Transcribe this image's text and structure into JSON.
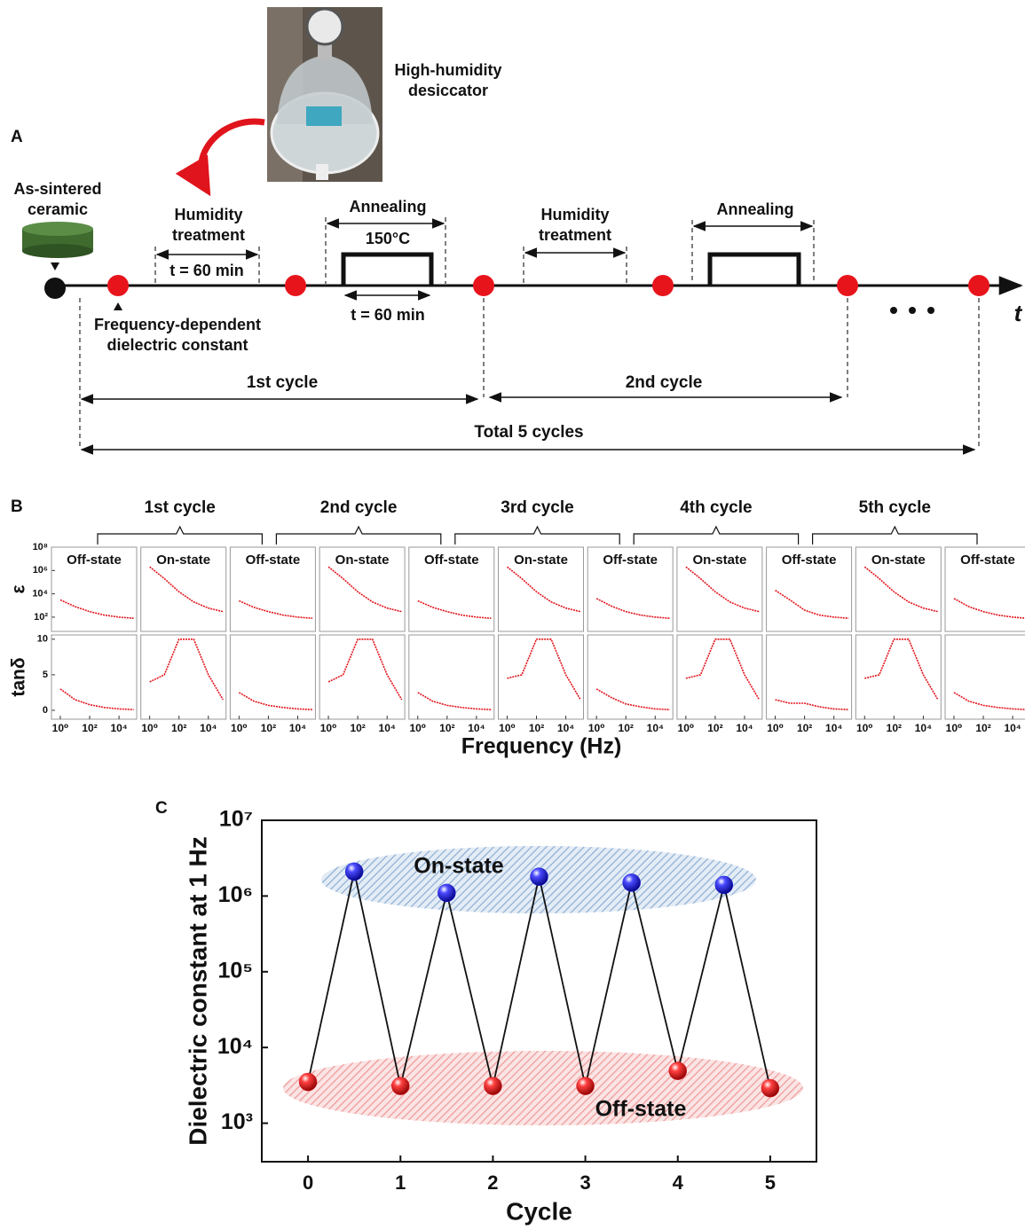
{
  "diagram": {
    "label": "A",
    "desiccator": [
      "High-humidity",
      "desiccator"
    ],
    "sample": [
      "As-sintered",
      "ceramic"
    ],
    "measurement": [
      "Frequency-dependent",
      "dielectric constant"
    ],
    "steps": [
      {
        "title": [
          "Humidity",
          "treatment"
        ],
        "time": "t = 60 min"
      },
      {
        "title": [
          "Annealing"
        ],
        "temperature": "150°C",
        "time": "t = 60 min"
      },
      {
        "title": [
          "Humidity",
          "treatment"
        ]
      },
      {
        "title": [
          "Annealing"
        ]
      }
    ],
    "axis": "t",
    "cycles": [
      "1st cycle",
      "2nd cycle"
    ],
    "total": "Total 5 cycles"
  },
  "chart_data": [
    {
      "type": "small-multiples",
      "panel_label": "B",
      "groups": [
        "1st cycle",
        "2nd cycle",
        "3rd cycle",
        "4th cycle",
        "5th cycle"
      ],
      "color": "#e3141c",
      "log_x": true,
      "x": [
        1,
        10,
        100,
        1000,
        10000,
        100000
      ],
      "xlim": [
        0.25,
        160000
      ],
      "xticks": [
        {
          "value": 1,
          "label": "10⁰"
        },
        {
          "value": 100,
          "label": "10²"
        },
        {
          "value": 10000,
          "label": "10⁴"
        }
      ],
      "xlabel": "Frequency (Hz)",
      "rows": {
        "epsilon": {
          "label": "ε",
          "log_y": true,
          "ylim": [
            6,
            100000000
          ],
          "yticks": [
            {
              "value": 100,
              "label": "10²"
            },
            {
              "value": 10000,
              "label": "10⁴"
            },
            {
              "value": 1000000,
              "label": "10⁶"
            },
            {
              "value": 100000000,
              "label": "10⁸"
            }
          ]
        },
        "tan_delta": {
          "label": "tanδ",
          "log_y": false,
          "ylim": [
            -1.25,
            10.6
          ],
          "yticks": [
            0,
            5,
            10
          ]
        }
      },
      "panels": [
        {
          "label": "Off-state",
          "epsilon": [
            3000,
            800,
            300,
            150,
            100,
            80
          ],
          "tan_delta": [
            3,
            1.5,
            0.8,
            0.4,
            0.2,
            0.1
          ]
        },
        {
          "label": "On-state",
          "epsilon": [
            2000000,
            200000,
            15000,
            2000,
            600,
            300
          ],
          "tan_delta": [
            4,
            5,
            10,
            10,
            5,
            1.5
          ]
        },
        {
          "label": "Off-state",
          "epsilon": [
            2500,
            700,
            300,
            150,
            100,
            80
          ],
          "tan_delta": [
            2.5,
            1.3,
            0.7,
            0.4,
            0.2,
            0.1
          ]
        },
        {
          "label": "On-state",
          "epsilon": [
            2000000,
            200000,
            15000,
            2000,
            600,
            300
          ],
          "tan_delta": [
            4,
            5,
            10,
            10,
            5,
            1.5
          ]
        },
        {
          "label": "Off-state",
          "epsilon": [
            2500,
            700,
            300,
            150,
            100,
            80
          ],
          "tan_delta": [
            2.5,
            1.3,
            0.7,
            0.4,
            0.2,
            0.1
          ]
        },
        {
          "label": "On-state",
          "epsilon": [
            2000000,
            200000,
            15000,
            2000,
            600,
            300
          ],
          "tan_delta": [
            4.5,
            5,
            10,
            10,
            5,
            1.5
          ]
        },
        {
          "label": "Off-state",
          "epsilon": [
            4000,
            900,
            300,
            150,
            100,
            80
          ],
          "tan_delta": [
            3,
            1.8,
            0.9,
            0.5,
            0.2,
            0.1
          ]
        },
        {
          "label": "On-state",
          "epsilon": [
            2000000,
            200000,
            15000,
            2000,
            600,
            300
          ],
          "tan_delta": [
            4.5,
            5,
            10,
            10,
            5,
            1.5
          ]
        },
        {
          "label": "Off-state",
          "epsilon": [
            20000,
            3000,
            400,
            150,
            100,
            80
          ],
          "tan_delta": [
            1.5,
            1,
            1,
            0.5,
            0.2,
            0.1
          ]
        },
        {
          "label": "On-state",
          "epsilon": [
            2000000,
            200000,
            15000,
            2000,
            600,
            300
          ],
          "tan_delta": [
            4.5,
            5,
            10,
            10,
            5,
            1.5
          ]
        },
        {
          "label": "Off-state",
          "epsilon": [
            4000,
            800,
            300,
            150,
            100,
            80
          ],
          "tan_delta": [
            2.5,
            1.3,
            0.7,
            0.4,
            0.2,
            0.1
          ]
        }
      ]
    },
    {
      "type": "scatter",
      "panel_label": "C",
      "xlabel": "Cycle",
      "ylabel": "Dielectric constant at 1 Hz",
      "log_y": true,
      "connect": true,
      "xlim": [
        -0.5,
        5.5
      ],
      "xticks": [
        0,
        1,
        2,
        3,
        4,
        5
      ],
      "ylim": [
        310,
        10000000
      ],
      "yticks": [
        {
          "value": 1000,
          "label": "10³"
        },
        {
          "value": 10000,
          "label": "10⁴"
        },
        {
          "value": 100000,
          "label": "10⁵"
        },
        {
          "value": 1000000,
          "label": "10⁶"
        },
        {
          "value": 10000000,
          "label": "10⁷"
        }
      ],
      "series": [
        {
          "name": "On-state",
          "color": "#1a1adc",
          "x": [
            0.5,
            1.5,
            2.5,
            3.5,
            4.5
          ],
          "values": [
            2100000,
            1100000,
            1800000,
            1500000,
            1400000
          ]
        },
        {
          "name": "Off-state",
          "color": "#e0141c",
          "x": [
            0,
            1,
            2,
            3,
            4,
            5
          ],
          "values": [
            3500,
            3100,
            3100,
            3100,
            4900,
            2900
          ]
        }
      ]
    }
  ]
}
